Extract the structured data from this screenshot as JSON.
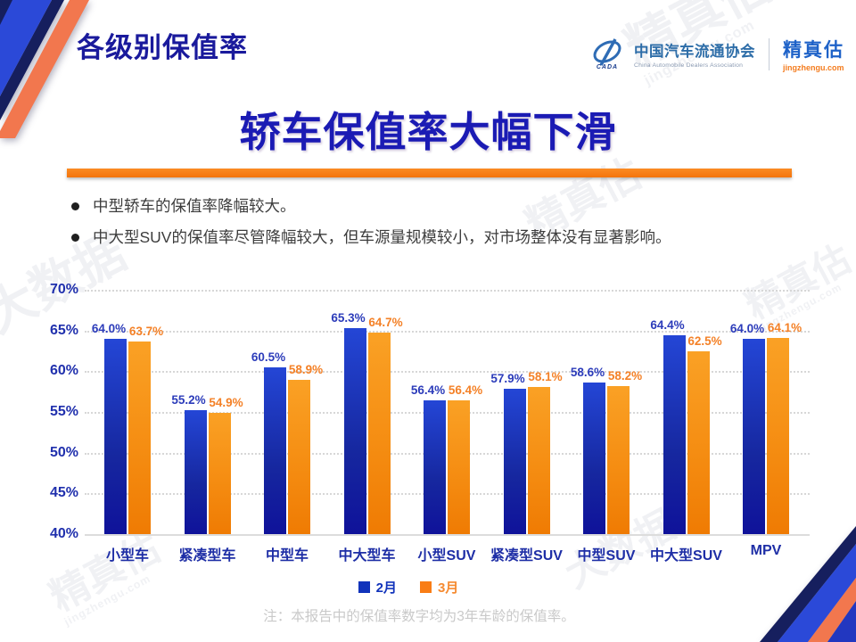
{
  "slide": {
    "header_title": "各级别保值率",
    "main_title": "轿车保值率大幅下滑",
    "bullets": [
      "中型轿车的保值率降幅较大。",
      "中大型SUV的保值率尽管降幅较大，但车源量规模较小，对市场整体没有显著影响。"
    ],
    "note": "注：本报告中的保值率数字均为3年车龄的保值率。"
  },
  "logo": {
    "org_name_cn": "中国汽车流通协会",
    "org_name_en": "China Automobile Dealers Association",
    "org_logo_caption": "CADA",
    "brand_name": "精真估",
    "brand_domain": "jingzhengu.com"
  },
  "watermarks": {
    "brand": "精真估",
    "domain": "jingzhengu.com",
    "bigdata": "大数据"
  },
  "colors": {
    "header_blue": "#1a1a9c",
    "title_blue": "#1b1bb4",
    "accent_orange": "#f4740c",
    "bar_blue_top": "#2446d6",
    "bar_blue_bottom": "#0f129a",
    "bar_orange_top": "#faa125",
    "bar_orange_bottom": "#ef7b03",
    "value_label_blue": "#2c3cba",
    "value_label_orange": "#f48127",
    "axis_label_blue": "#2030ad",
    "note_gray": "#c9c9c9"
  },
  "chart_data": {
    "type": "bar",
    "title": "",
    "categories": [
      "小型车",
      "紧凑型车",
      "中型车",
      "中大型车",
      "小型SUV",
      "紧凑型SUV",
      "中型SUV",
      "中大型SUV",
      "MPV"
    ],
    "series": [
      {
        "name": "2月",
        "color": "#1133bb",
        "values": [
          64.0,
          55.2,
          60.5,
          65.3,
          56.4,
          57.9,
          58.6,
          64.4,
          64.0
        ]
      },
      {
        "name": "3月",
        "color": "#f58a30",
        "values": [
          63.7,
          54.9,
          58.9,
          64.7,
          56.4,
          58.1,
          58.2,
          62.5,
          64.1
        ]
      }
    ],
    "xlabel": "",
    "ylabel": "",
    "ylim": [
      40,
      70
    ],
    "yticks": [
      40,
      45,
      50,
      55,
      60,
      65,
      70
    ],
    "ytick_format": "percent",
    "value_labels": true,
    "value_label_format": "one_decimal_percent",
    "grid": "horizontal-dotted",
    "legend_position": "bottom"
  }
}
